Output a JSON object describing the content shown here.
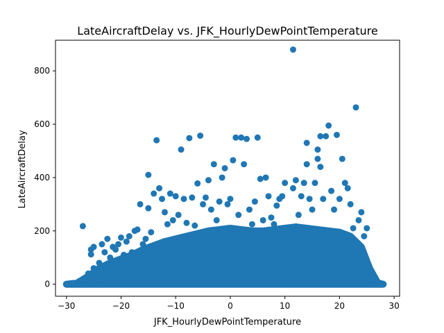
{
  "chart_data": {
    "type": "scatter",
    "title": "LateAircraftDelay vs. JFK_HourlyDewPointTemperature",
    "xlabel": "JFK_HourlyDewPointTemperature",
    "ylabel": "LateAircraftDelay",
    "xlim": [
      -32,
      31
    ],
    "ylim": [
      -45,
      915
    ],
    "x_ticks": [
      -30,
      -20,
      -10,
      0,
      10,
      20,
      30
    ],
    "y_ticks": [
      0,
      200,
      400,
      600,
      800
    ],
    "marker_color": "#1f77b4",
    "grid": false,
    "legend": "none",
    "series": [
      {
        "points": [
          [
            -30,
            0
          ],
          [
            -28.5,
            0
          ],
          [
            -27.5,
            0
          ],
          [
            -27,
            218
          ],
          [
            -26.5,
            20
          ],
          [
            -26,
            40
          ],
          [
            -25.5,
            112
          ],
          [
            -25.5,
            130
          ],
          [
            -25,
            140
          ],
          [
            -25,
            60
          ],
          [
            -24,
            80
          ],
          [
            -23.5,
            150
          ],
          [
            -23,
            120
          ],
          [
            -22.5,
            170
          ],
          [
            -22,
            100
          ],
          [
            -21.5,
            140
          ],
          [
            -21,
            130
          ],
          [
            -20.5,
            150
          ],
          [
            -20,
            175
          ],
          [
            -19.5,
            110
          ],
          [
            -19,
            160
          ],
          [
            -18.5,
            180
          ],
          [
            -18,
            120
          ],
          [
            -17.5,
            200
          ],
          [
            -17,
            205
          ],
          [
            -16.5,
            300
          ],
          [
            -16,
            150
          ],
          [
            -15.5,
            170
          ],
          [
            -15,
            410
          ],
          [
            -15,
            285
          ],
          [
            -14.5,
            195
          ],
          [
            -14,
            340
          ],
          [
            -13.5,
            540
          ],
          [
            -13,
            360
          ],
          [
            -12.5,
            320
          ],
          [
            -12,
            270
          ],
          [
            -11.5,
            225
          ],
          [
            -11,
            340
          ],
          [
            -10.5,
            240
          ],
          [
            -10,
            330
          ],
          [
            -9.5,
            260
          ],
          [
            -9,
            505
          ],
          [
            -8.5,
            320
          ],
          [
            -8,
            230
          ],
          [
            -7.5,
            548
          ],
          [
            -7,
            325
          ],
          [
            -6.5,
            220
          ],
          [
            -6,
            378
          ],
          [
            -5.5,
            557
          ],
          [
            -5,
            300
          ],
          [
            -4.5,
            325
          ],
          [
            -4,
            390
          ],
          [
            -3.5,
            280
          ],
          [
            -3,
            450
          ],
          [
            -2.5,
            240
          ],
          [
            -2,
            310
          ],
          [
            -1.5,
            400
          ],
          [
            -1,
            435
          ],
          [
            -0.5,
            300
          ],
          [
            0,
            320
          ],
          [
            0.5,
            465
          ],
          [
            1,
            550
          ],
          [
            1.5,
            260
          ],
          [
            2,
            550
          ],
          [
            2.5,
            450
          ],
          [
            3,
            545
          ],
          [
            3.5,
            280
          ],
          [
            4,
            225
          ],
          [
            4.5,
            310
          ],
          [
            5,
            550
          ],
          [
            5.5,
            395
          ],
          [
            6,
            240
          ],
          [
            6.5,
            400
          ],
          [
            7,
            330
          ],
          [
            7.5,
            250
          ],
          [
            8,
            225
          ],
          [
            8.5,
            295
          ],
          [
            9,
            320
          ],
          [
            9.5,
            330
          ],
          [
            10,
            380
          ],
          [
            10.5,
            200
          ],
          [
            11,
            185
          ],
          [
            11.5,
            880
          ],
          [
            11.5,
            360
          ],
          [
            12,
            390
          ],
          [
            12.5,
            260
          ],
          [
            13,
            330
          ],
          [
            13.5,
            380
          ],
          [
            14,
            450
          ],
          [
            14,
            530
          ],
          [
            14.5,
            320
          ],
          [
            15,
            280
          ],
          [
            15.5,
            380
          ],
          [
            16,
            470
          ],
          [
            16,
            505
          ],
          [
            16.5,
            440
          ],
          [
            16.5,
            555
          ],
          [
            17,
            320
          ],
          [
            17.5,
            555
          ],
          [
            18,
            595
          ],
          [
            18.5,
            350
          ],
          [
            19,
            280
          ],
          [
            19.5,
            560
          ],
          [
            20,
            320
          ],
          [
            20.5,
            470
          ],
          [
            21,
            380
          ],
          [
            21.5,
            360
          ],
          [
            22,
            300
          ],
          [
            22.5,
            210
          ],
          [
            23,
            663
          ],
          [
            23.5,
            240
          ],
          [
            24,
            270
          ],
          [
            24.5,
            180
          ],
          [
            25,
            210
          ],
          [
            25.5,
            60
          ],
          [
            26,
            40
          ],
          [
            26.5,
            0
          ],
          [
            27,
            0
          ],
          [
            27.5,
            0
          ],
          [
            28,
            0
          ],
          [
            -24,
            20
          ],
          [
            -22,
            40
          ],
          [
            -20,
            60
          ],
          [
            -18,
            80
          ],
          [
            -16,
            100
          ],
          [
            -14,
            120
          ],
          [
            -12,
            130
          ],
          [
            -10,
            140
          ],
          [
            -8,
            150
          ],
          [
            -6,
            160
          ],
          [
            -4,
            170
          ],
          [
            -2,
            180
          ],
          [
            0,
            190
          ],
          [
            2,
            185
          ],
          [
            4,
            180
          ],
          [
            6,
            175
          ],
          [
            8,
            170
          ],
          [
            10,
            180
          ],
          [
            12,
            190
          ],
          [
            14,
            185
          ],
          [
            16,
            180
          ],
          [
            18,
            175
          ],
          [
            20,
            170
          ],
          [
            22,
            160
          ],
          [
            24,
            120
          ],
          [
            26,
            20
          ],
          [
            -26,
            0
          ],
          [
            -24,
            0
          ],
          [
            -22,
            0
          ],
          [
            -20,
            0
          ],
          [
            -18,
            0
          ],
          [
            -16,
            0
          ],
          [
            -14,
            0
          ],
          [
            -12,
            0
          ],
          [
            -10,
            0
          ],
          [
            -8,
            0
          ],
          [
            -6,
            0
          ],
          [
            -4,
            0
          ],
          [
            -2,
            0
          ],
          [
            0,
            0
          ],
          [
            2,
            0
          ],
          [
            4,
            0
          ],
          [
            6,
            0
          ],
          [
            8,
            0
          ],
          [
            10,
            0
          ],
          [
            12,
            0
          ],
          [
            14,
            0
          ],
          [
            16,
            0
          ],
          [
            18,
            0
          ],
          [
            20,
            0
          ],
          [
            22,
            0
          ],
          [
            24,
            0
          ],
          [
            26,
            0
          ]
        ]
      }
    ],
    "dense_band": [
      {
        "x": -30,
        "ymax": 0
      },
      {
        "x": -28,
        "ymax": 5
      },
      {
        "x": -26,
        "ymax": 30
      },
      {
        "x": -24,
        "ymax": 60
      },
      {
        "x": -22,
        "ymax": 80
      },
      {
        "x": -20,
        "ymax": 95
      },
      {
        "x": -18,
        "ymax": 110
      },
      {
        "x": -16,
        "ymax": 130
      },
      {
        "x": -14,
        "ymax": 145
      },
      {
        "x": -12,
        "ymax": 160
      },
      {
        "x": -10,
        "ymax": 170
      },
      {
        "x": -8,
        "ymax": 180
      },
      {
        "x": -6,
        "ymax": 190
      },
      {
        "x": -4,
        "ymax": 200
      },
      {
        "x": -2,
        "ymax": 205
      },
      {
        "x": 0,
        "ymax": 210
      },
      {
        "x": 2,
        "ymax": 205
      },
      {
        "x": 4,
        "ymax": 200
      },
      {
        "x": 6,
        "ymax": 200
      },
      {
        "x": 8,
        "ymax": 205
      },
      {
        "x": 10,
        "ymax": 210
      },
      {
        "x": 12,
        "ymax": 215
      },
      {
        "x": 14,
        "ymax": 210
      },
      {
        "x": 16,
        "ymax": 205
      },
      {
        "x": 18,
        "ymax": 200
      },
      {
        "x": 20,
        "ymax": 195
      },
      {
        "x": 22,
        "ymax": 180
      },
      {
        "x": 24,
        "ymax": 140
      },
      {
        "x": 25.5,
        "ymax": 60
      },
      {
        "x": 27,
        "ymax": 5
      },
      {
        "x": 28,
        "ymax": 0
      }
    ]
  }
}
